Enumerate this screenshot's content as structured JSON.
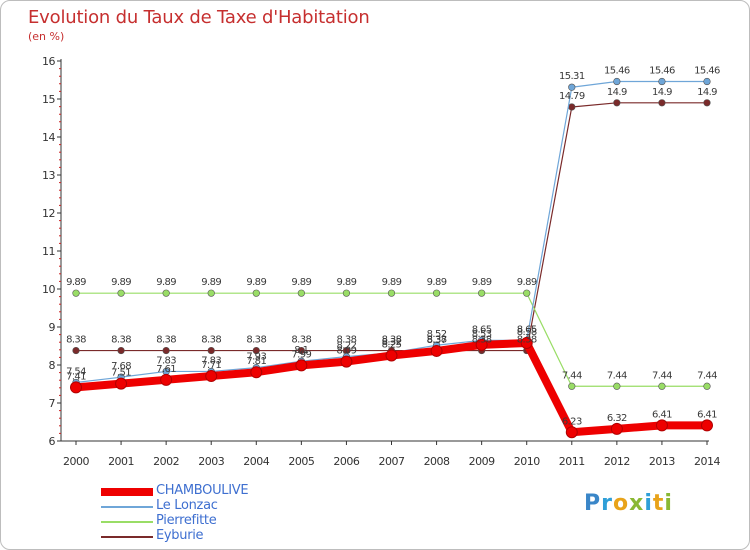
{
  "title": "Evolution du Taux de Taxe d'Habitation",
  "unit_label": "(en %)",
  "logo": {
    "letters": [
      "P",
      "r",
      "o",
      "x",
      "i",
      "t",
      "i"
    ],
    "colors": [
      "#3a86c8",
      "#2f9fd8",
      "#e8a31a",
      "#8ab833",
      "#2f9fd8",
      "#e8a31a",
      "#8ab833"
    ]
  },
  "chart_data": {
    "type": "line",
    "title": "Evolution du Taux de Taxe d'Habitation",
    "ylabel": "(en %)",
    "xlabel": "",
    "x": [
      "2000",
      "2001",
      "2002",
      "2003",
      "2004",
      "2005",
      "2006",
      "2007",
      "2008",
      "2009",
      "2010",
      "2011",
      "2012",
      "2013",
      "2014"
    ],
    "ylim": [
      6,
      16
    ],
    "yticks": [
      "6",
      "7",
      "8",
      "9",
      "10",
      "11",
      "12",
      "13",
      "14",
      "15",
      "16"
    ],
    "grid": false,
    "legend_position": "bottom-left",
    "series": [
      {
        "name": "CHAMBOULIVE",
        "color": "#ee0000",
        "values": [
          7.41,
          7.51,
          7.61,
          7.71,
          7.81,
          7.99,
          8.09,
          8.25,
          8.37,
          8.53,
          8.58,
          6.23,
          6.32,
          6.41,
          6.41
        ],
        "labels": [
          "7.41",
          "7.51",
          "7.61",
          "7.71",
          "7.81",
          "7.99",
          "8.09",
          "8.25",
          "8.37",
          "8.53",
          "8.58",
          "6.23",
          "6.32",
          "6.41",
          "6.41"
        ]
      },
      {
        "name": "Le Lonzac",
        "color": "#6fa6d8",
        "values": [
          7.54,
          7.68,
          7.83,
          7.83,
          7.93,
          8.1,
          8.22,
          8.32,
          8.52,
          8.65,
          8.65,
          15.31,
          15.46,
          15.46,
          15.46
        ],
        "labels": [
          "7.54",
          "7.68",
          "7.83",
          "7.83",
          "7.93",
          "8.1",
          "8.22",
          "8.32",
          "8.52",
          "8.65",
          "8.65",
          "15.31",
          "15.46",
          "15.46",
          "15.46"
        ]
      },
      {
        "name": "Pierrefitte",
        "color": "#99dd66",
        "values": [
          9.89,
          9.89,
          9.89,
          9.89,
          9.89,
          9.89,
          9.89,
          9.89,
          9.89,
          9.89,
          9.89,
          7.44,
          7.44,
          7.44,
          7.44
        ],
        "labels": [
          "9.89",
          "9.89",
          "9.89",
          "9.89",
          "9.89",
          "9.89",
          "9.89",
          "9.89",
          "9.89",
          "9.89",
          "9.89",
          "7.44",
          "7.44",
          "7.44",
          "7.44"
        ]
      },
      {
        "name": "Eyburie",
        "color": "#7a2a2a",
        "values": [
          8.38,
          8.38,
          8.38,
          8.38,
          8.38,
          8.38,
          8.38,
          8.38,
          8.38,
          8.38,
          8.38,
          14.79,
          14.9,
          14.9,
          14.9
        ],
        "labels": [
          "8.38",
          "8.38",
          "8.38",
          "8.38",
          "8.38",
          "8.38",
          "8.38",
          "8.38",
          "8.38",
          "8.38",
          "8.38",
          "14.79",
          "14.9",
          "14.9",
          "14.9"
        ]
      }
    ]
  }
}
